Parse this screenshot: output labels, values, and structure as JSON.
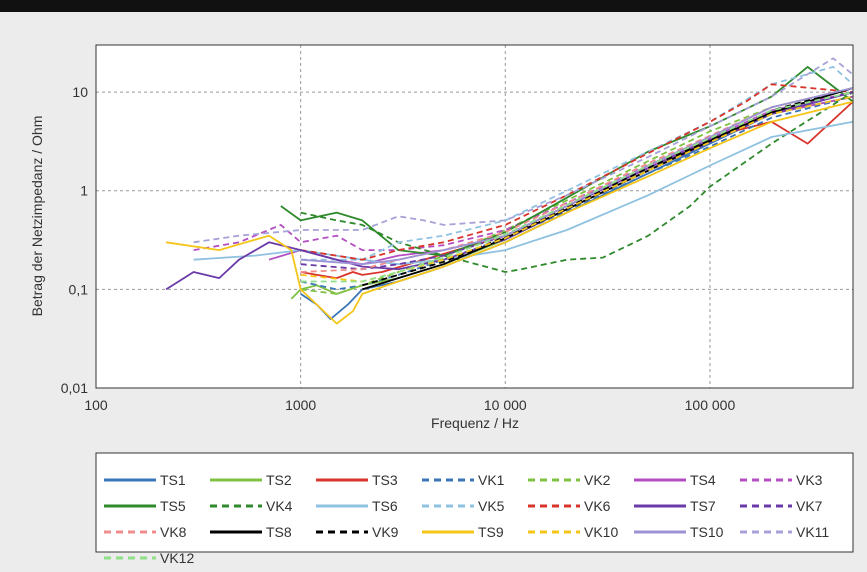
{
  "chart_data": {
    "type": "line",
    "title": "",
    "xlabel": "Frequenz / Hz",
    "ylabel": "Betrag der Netzimpedanz / Ohm",
    "x_scale": "log",
    "y_scale": "log",
    "xlim": [
      100,
      500000
    ],
    "ylim": [
      0.01,
      30
    ],
    "x_ticks": [
      {
        "value": 100,
        "label": "100"
      },
      {
        "value": 1000,
        "label": "1000"
      },
      {
        "value": 10000,
        "label": "10 000"
      },
      {
        "value": 100000,
        "label": "100 000"
      }
    ],
    "y_ticks": [
      {
        "value": 0.01,
        "label": "0,01"
      },
      {
        "value": 0.1,
        "label": "0,1"
      },
      {
        "value": 1,
        "label": "1"
      },
      {
        "value": 10,
        "label": "10"
      }
    ],
    "grid": true,
    "legend_position": "bottom",
    "series": [
      {
        "name": "TS1",
        "color": "#3a76b7",
        "dash": "solid",
        "x": [
          1000,
          1200,
          1400,
          1700,
          2000,
          3000,
          5000,
          10000,
          20000,
          50000,
          100000,
          200000,
          500000
        ],
        "y": [
          0.09,
          0.07,
          0.05,
          0.07,
          0.1,
          0.12,
          0.17,
          0.3,
          0.6,
          1.5,
          3,
          6,
          10
        ]
      },
      {
        "name": "TS2",
        "color": "#7fc141",
        "dash": "solid",
        "x": [
          900,
          1000,
          1200,
          1500,
          2000,
          3000,
          5000,
          10000,
          20000,
          50000,
          100000,
          200000,
          500000
        ],
        "y": [
          0.08,
          0.1,
          0.11,
          0.09,
          0.11,
          0.13,
          0.18,
          0.32,
          0.65,
          1.6,
          3.2,
          6,
          9
        ]
      },
      {
        "name": "TS3",
        "color": "#d9342b",
        "dash": "solid",
        "x": [
          1000,
          1200,
          1500,
          1800,
          2000,
          2500,
          4000,
          10000,
          20000,
          50000,
          100000,
          200000,
          300000,
          500000
        ],
        "y": [
          0.15,
          0.14,
          0.13,
          0.15,
          0.14,
          0.15,
          0.2,
          0.35,
          0.7,
          1.8,
          3.5,
          5,
          3,
          8
        ]
      },
      {
        "name": "VK1",
        "color": "#3a76b7",
        "dash": "dashed",
        "x": [
          1000,
          1500,
          2000,
          3000,
          5000,
          10000,
          20000,
          50000,
          100000,
          200000,
          500000
        ],
        "y": [
          0.12,
          0.1,
          0.11,
          0.14,
          0.2,
          0.33,
          0.62,
          1.5,
          2.8,
          5.5,
          9
        ]
      },
      {
        "name": "VK2",
        "color": "#7fc141",
        "dash": "dashed",
        "x": [
          1000,
          1500,
          2000,
          3000,
          6000,
          10000,
          20000,
          50000,
          100000,
          200000,
          500000
        ],
        "y": [
          0.1,
          0.09,
          0.11,
          0.15,
          0.25,
          0.4,
          0.8,
          2,
          4,
          7,
          11
        ]
      },
      {
        "name": "TS4",
        "color": "#b44ec2",
        "dash": "solid",
        "x": [
          700,
          1000,
          1500,
          2000,
          3000,
          5000,
          10000,
          20000,
          50000,
          100000,
          200000,
          500000
        ],
        "y": [
          0.2,
          0.25,
          0.2,
          0.18,
          0.22,
          0.25,
          0.35,
          0.7,
          1.7,
          3.3,
          6,
          9
        ]
      },
      {
        "name": "VK3",
        "color": "#b44ec2",
        "dash": "dashed",
        "x": [
          300,
          500,
          800,
          1000,
          1500,
          2000,
          3000,
          5000,
          10000,
          20000,
          50000,
          100000,
          200000,
          500000
        ],
        "y": [
          0.25,
          0.3,
          0.45,
          0.3,
          0.35,
          0.25,
          0.25,
          0.28,
          0.4,
          0.75,
          1.8,
          3.4,
          6.5,
          10
        ]
      },
      {
        "name": "TS5",
        "color": "#2f8a2c",
        "dash": "solid",
        "x": [
          800,
          1000,
          1500,
          2000,
          3000,
          5000,
          10000,
          20000,
          50000,
          100000,
          200000,
          300000,
          500000
        ],
        "y": [
          0.7,
          0.5,
          0.6,
          0.5,
          0.25,
          0.22,
          0.38,
          0.85,
          2.5,
          4.5,
          9,
          18,
          8
        ]
      },
      {
        "name": "VK4",
        "color": "#2f8a2c",
        "dash": "dashed",
        "x": [
          1000,
          1500,
          2000,
          3000,
          5000,
          8000,
          10000,
          12000,
          20000,
          30000,
          50000,
          80000,
          100000,
          200000,
          500000
        ],
        "y": [
          0.6,
          0.5,
          0.45,
          0.3,
          0.22,
          0.17,
          0.15,
          0.16,
          0.2,
          0.21,
          0.35,
          0.7,
          1.1,
          3,
          10
        ]
      },
      {
        "name": "TS6",
        "color": "#8fc1e0",
        "dash": "solid",
        "x": [
          300,
          600,
          1000,
          2000,
          3000,
          5000,
          10000,
          20000,
          50000,
          100000,
          200000,
          500000
        ],
        "y": [
          0.2,
          0.22,
          0.25,
          0.2,
          0.18,
          0.2,
          0.25,
          0.4,
          0.9,
          1.8,
          3.5,
          5
        ]
      },
      {
        "name": "VK5",
        "color": "#8fc1e0",
        "dash": "dashed",
        "x": [
          1000,
          2000,
          3000,
          5000,
          10000,
          20000,
          50000,
          100000,
          200000,
          400000,
          500000
        ],
        "y": [
          0.2,
          0.2,
          0.3,
          0.35,
          0.5,
          1,
          2.5,
          5,
          12,
          18,
          12
        ]
      },
      {
        "name": "VK6",
        "color": "#d9342b",
        "dash": "dashed",
        "x": [
          1000,
          2000,
          3000,
          5000,
          10000,
          20000,
          50000,
          100000,
          150000,
          200000,
          500000
        ],
        "y": [
          0.25,
          0.2,
          0.25,
          0.3,
          0.45,
          0.9,
          2.4,
          5,
          8,
          12,
          10
        ]
      },
      {
        "name": "TS7",
        "color": "#6a3aa8",
        "dash": "solid",
        "x": [
          220,
          300,
          400,
          500,
          700,
          1000,
          1500,
          2000,
          3000,
          5000,
          10000,
          20000,
          50000,
          100000,
          200000,
          500000
        ],
        "y": [
          0.1,
          0.15,
          0.13,
          0.2,
          0.3,
          0.25,
          0.2,
          0.17,
          0.16,
          0.2,
          0.32,
          0.65,
          1.6,
          3.1,
          6,
          10
        ]
      },
      {
        "name": "VK7",
        "color": "#6a3aa8",
        "dash": "dashed",
        "x": [
          1000,
          2000,
          3000,
          5000,
          10000,
          20000,
          50000,
          100000,
          200000,
          500000
        ],
        "y": [
          0.18,
          0.16,
          0.18,
          0.22,
          0.35,
          0.7,
          1.7,
          3.3,
          6,
          10
        ]
      },
      {
        "name": "VK8",
        "color": "#f08c8c",
        "dash": "dashed",
        "x": [
          1000,
          2000,
          3000,
          5000,
          10000,
          20000,
          50000,
          100000,
          200000,
          500000
        ],
        "y": [
          0.15,
          0.16,
          0.2,
          0.25,
          0.38,
          0.75,
          1.9,
          3.6,
          7,
          11
        ]
      },
      {
        "name": "TS8",
        "color": "#000000",
        "dash": "solid",
        "x": [
          2000,
          3000,
          5000,
          10000,
          20000,
          50000,
          100000,
          200000,
          500000
        ],
        "y": [
          0.1,
          0.13,
          0.18,
          0.33,
          0.65,
          1.6,
          3.2,
          6.2,
          11
        ]
      },
      {
        "name": "VK9",
        "color": "#000000",
        "dash": "dashed",
        "x": [
          2000,
          3000,
          5000,
          10000,
          20000,
          50000,
          100000,
          200000,
          500000
        ],
        "y": [
          0.11,
          0.14,
          0.19,
          0.34,
          0.68,
          1.7,
          3.3,
          6.5,
          11
        ]
      },
      {
        "name": "TS9",
        "color": "#f5c518",
        "dash": "solid",
        "x": [
          220,
          400,
          700,
          900,
          1000,
          1200,
          1500,
          1800,
          2000,
          3000,
          5000,
          10000,
          20000,
          50000,
          100000,
          200000,
          500000
        ],
        "y": [
          0.3,
          0.25,
          0.35,
          0.25,
          0.1,
          0.07,
          0.045,
          0.06,
          0.09,
          0.12,
          0.17,
          0.3,
          0.6,
          1.4,
          2.7,
          5,
          8
        ]
      },
      {
        "name": "VK10",
        "color": "#f5c518",
        "dash": "dashed",
        "x": [
          1000,
          2000,
          3000,
          5000,
          10000,
          20000,
          50000,
          100000,
          200000,
          500000
        ],
        "y": [
          0.14,
          0.12,
          0.15,
          0.2,
          0.33,
          0.66,
          1.6,
          3.1,
          6,
          9
        ]
      },
      {
        "name": "TS10",
        "color": "#9d93d4",
        "dash": "solid",
        "x": [
          1000,
          2000,
          3000,
          5000,
          10000,
          20000,
          50000,
          100000,
          200000,
          500000
        ],
        "y": [
          0.2,
          0.18,
          0.2,
          0.25,
          0.35,
          0.7,
          1.8,
          3.5,
          7,
          11
        ]
      },
      {
        "name": "VK11",
        "color": "#a6a2d8",
        "dash": "dashed",
        "x": [
          300,
          500,
          1000,
          2000,
          3000,
          4000,
          5000,
          10000,
          20000,
          50000,
          100000,
          200000,
          400000,
          500000
        ],
        "y": [
          0.3,
          0.35,
          0.4,
          0.4,
          0.55,
          0.5,
          0.45,
          0.5,
          0.9,
          2.2,
          4.5,
          9,
          22,
          15
        ]
      },
      {
        "name": "VK12",
        "color": "#90e08a",
        "dash": "dashed",
        "x": [
          1000,
          2000,
          3000,
          5000,
          10000,
          20000,
          50000,
          100000,
          200000,
          500000
        ],
        "y": [
          0.12,
          0.12,
          0.15,
          0.21,
          0.36,
          0.72,
          1.8,
          3.4,
          6.5,
          10
        ]
      }
    ]
  }
}
